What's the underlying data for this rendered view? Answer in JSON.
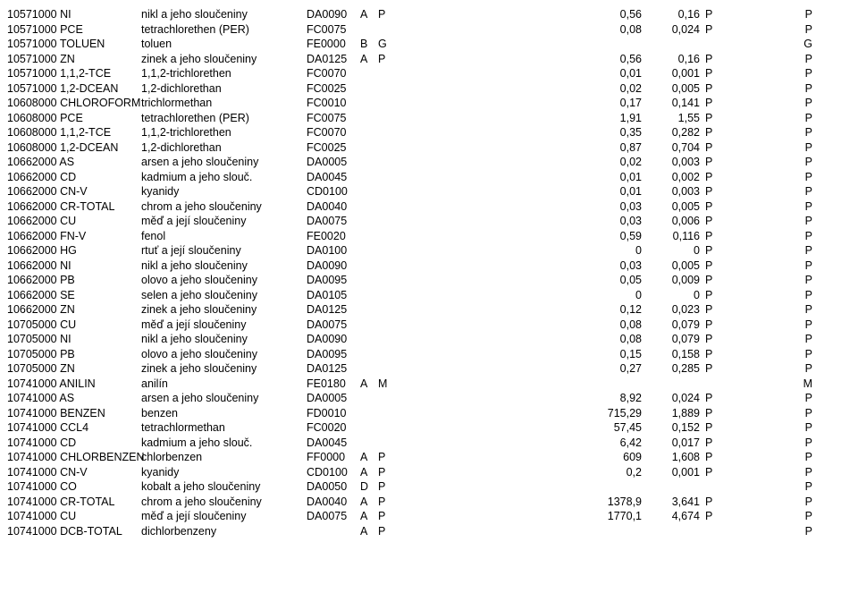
{
  "rows": [
    {
      "id": "10571000",
      "code": "NI",
      "desc": "nikl a jeho sloučeniny",
      "fc": "DA0090",
      "f1": "A",
      "f2": "P",
      "v1": "0,56",
      "v2": "0,16",
      "f3": "P",
      "f4": "P"
    },
    {
      "id": "10571000",
      "code": "PCE",
      "desc": "tetrachlorethen (PER)",
      "fc": "FC0075",
      "f1": "",
      "f2": "",
      "v1": "0,08",
      "v2": "0,024",
      "f3": "P",
      "f4": "P"
    },
    {
      "id": "10571000",
      "code": "TOLUEN",
      "desc": "toluen",
      "fc": "FE0000",
      "f1": "B",
      "f2": "G",
      "v1": "",
      "v2": "",
      "f3": "",
      "f4": "G"
    },
    {
      "id": "10571000",
      "code": "ZN",
      "desc": "zinek a jeho sloučeniny",
      "fc": "DA0125",
      "f1": "A",
      "f2": "P",
      "v1": "0,56",
      "v2": "0,16",
      "f3": "P",
      "f4": "P"
    },
    {
      "id": "10571000",
      "code": "1,1,2-TCE",
      "desc": "1,1,2-trichlorethen",
      "fc": "FC0070",
      "f1": "",
      "f2": "",
      "v1": "0,01",
      "v2": "0,001",
      "f3": "P",
      "f4": "P"
    },
    {
      "id": "10571000",
      "code": "1,2-DCEAN",
      "desc": "1,2-dichlorethan",
      "fc": "FC0025",
      "f1": "",
      "f2": "",
      "v1": "0,02",
      "v2": "0,005",
      "f3": "P",
      "f4": "P"
    },
    {
      "id": "10608000",
      "code": "CHLOROFORM",
      "desc": "trichlormethan",
      "fc": "FC0010",
      "f1": "",
      "f2": "",
      "v1": "0,17",
      "v2": "0,141",
      "f3": "P",
      "f4": "P"
    },
    {
      "id": "10608000",
      "code": "PCE",
      "desc": "tetrachlorethen (PER)",
      "fc": "FC0075",
      "f1": "",
      "f2": "",
      "v1": "1,91",
      "v2": "1,55",
      "f3": "P",
      "f4": "P"
    },
    {
      "id": "10608000",
      "code": "1,1,2-TCE",
      "desc": "1,1,2-trichlorethen",
      "fc": "FC0070",
      "f1": "",
      "f2": "",
      "v1": "0,35",
      "v2": "0,282",
      "f3": "P",
      "f4": "P"
    },
    {
      "id": "10608000",
      "code": "1,2-DCEAN",
      "desc": "1,2-dichlorethan",
      "fc": "FC0025",
      "f1": "",
      "f2": "",
      "v1": "0,87",
      "v2": "0,704",
      "f3": "P",
      "f4": "P"
    },
    {
      "id": "10662000",
      "code": "AS",
      "desc": "arsen a jeho sloučeniny",
      "fc": "DA0005",
      "f1": "",
      "f2": "",
      "v1": "0,02",
      "v2": "0,003",
      "f3": "P",
      "f4": "P"
    },
    {
      "id": "10662000",
      "code": "CD",
      "desc": "kadmium a jeho slouč.",
      "fc": "DA0045",
      "f1": "",
      "f2": "",
      "v1": "0,01",
      "v2": "0,002",
      "f3": "P",
      "f4": "P"
    },
    {
      "id": "10662000",
      "code": "CN-V",
      "desc": "kyanidy",
      "fc": "CD0100",
      "f1": "",
      "f2": "",
      "v1": "0,01",
      "v2": "0,003",
      "f3": "P",
      "f4": "P"
    },
    {
      "id": "10662000",
      "code": "CR-TOTAL",
      "desc": "chrom a jeho sloučeniny",
      "fc": "DA0040",
      "f1": "",
      "f2": "",
      "v1": "0,03",
      "v2": "0,005",
      "f3": "P",
      "f4": "P"
    },
    {
      "id": "10662000",
      "code": "CU",
      "desc": "měď a její sloučeniny",
      "fc": "DA0075",
      "f1": "",
      "f2": "",
      "v1": "0,03",
      "v2": "0,006",
      "f3": "P",
      "f4": "P"
    },
    {
      "id": "10662000",
      "code": "FN-V",
      "desc": "fenol",
      "fc": "FE0020",
      "f1": "",
      "f2": "",
      "v1": "0,59",
      "v2": "0,116",
      "f3": "P",
      "f4": "P"
    },
    {
      "id": "10662000",
      "code": "HG",
      "desc": "rtuť a její sloučeniny",
      "fc": "DA0100",
      "f1": "",
      "f2": "",
      "v1": "0",
      "v2": "0",
      "f3": "P",
      "f4": "P"
    },
    {
      "id": "10662000",
      "code": "NI",
      "desc": "nikl a jeho sloučeniny",
      "fc": "DA0090",
      "f1": "",
      "f2": "",
      "v1": "0,03",
      "v2": "0,005",
      "f3": "P",
      "f4": "P"
    },
    {
      "id": "10662000",
      "code": "PB",
      "desc": "olovo a jeho sloučeniny",
      "fc": "DA0095",
      "f1": "",
      "f2": "",
      "v1": "0,05",
      "v2": "0,009",
      "f3": "P",
      "f4": "P"
    },
    {
      "id": "10662000",
      "code": "SE",
      "desc": "selen a jeho sloučeniny",
      "fc": "DA0105",
      "f1": "",
      "f2": "",
      "v1": "0",
      "v2": "0",
      "f3": "P",
      "f4": "P"
    },
    {
      "id": "10662000",
      "code": "ZN",
      "desc": "zinek a jeho sloučeniny",
      "fc": "DA0125",
      "f1": "",
      "f2": "",
      "v1": "0,12",
      "v2": "0,023",
      "f3": "P",
      "f4": "P"
    },
    {
      "id": "10705000",
      "code": "CU",
      "desc": "měď a její sloučeniny",
      "fc": "DA0075",
      "f1": "",
      "f2": "",
      "v1": "0,08",
      "v2": "0,079",
      "f3": "P",
      "f4": "P"
    },
    {
      "id": "10705000",
      "code": "NI",
      "desc": "nikl a jeho sloučeniny",
      "fc": "DA0090",
      "f1": "",
      "f2": "",
      "v1": "0,08",
      "v2": "0,079",
      "f3": "P",
      "f4": "P"
    },
    {
      "id": "10705000",
      "code": "PB",
      "desc": "olovo a jeho sloučeniny",
      "fc": "DA0095",
      "f1": "",
      "f2": "",
      "v1": "0,15",
      "v2": "0,158",
      "f3": "P",
      "f4": "P"
    },
    {
      "id": "10705000",
      "code": "ZN",
      "desc": "zinek a jeho sloučeniny",
      "fc": "DA0125",
      "f1": "",
      "f2": "",
      "v1": "0,27",
      "v2": "0,285",
      "f3": "P",
      "f4": "P"
    },
    {
      "id": "10741000",
      "code": "ANILIN",
      "desc": "anilín",
      "fc": "FE0180",
      "f1": "A",
      "f2": "M",
      "v1": "",
      "v2": "",
      "f3": "",
      "f4": "M"
    },
    {
      "id": "10741000",
      "code": "AS",
      "desc": "arsen a jeho sloučeniny",
      "fc": "DA0005",
      "f1": "",
      "f2": "",
      "v1": "8,92",
      "v2": "0,024",
      "f3": "P",
      "f4": "P"
    },
    {
      "id": "10741000",
      "code": "BENZEN",
      "desc": "benzen",
      "fc": "FD0010",
      "f1": "",
      "f2": "",
      "v1": "715,29",
      "v2": "1,889",
      "f3": "P",
      "f4": "P"
    },
    {
      "id": "10741000",
      "code": "CCL4",
      "desc": "tetrachlormethan",
      "fc": "FC0020",
      "f1": "",
      "f2": "",
      "v1": "57,45",
      "v2": "0,152",
      "f3": "P",
      "f4": "P"
    },
    {
      "id": "10741000",
      "code": "CD",
      "desc": "kadmium a jeho slouč.",
      "fc": "DA0045",
      "f1": "",
      "f2": "",
      "v1": "6,42",
      "v2": "0,017",
      "f3": "P",
      "f4": "P"
    },
    {
      "id": "10741000",
      "code": "CHLORBENZEN",
      "desc": "chlorbenzen",
      "fc": "FF0000",
      "f1": "A",
      "f2": "P",
      "v1": "609",
      "v2": "1,608",
      "f3": "P",
      "f4": "P"
    },
    {
      "id": "10741000",
      "code": "CN-V",
      "desc": "kyanidy",
      "fc": "CD0100",
      "f1": "A",
      "f2": "P",
      "v1": "0,2",
      "v2": "0,001",
      "f3": "P",
      "f4": "P"
    },
    {
      "id": "10741000",
      "code": "CO",
      "desc": "kobalt a jeho sloučeniny",
      "fc": "DA0050",
      "f1": "D",
      "f2": "P",
      "v1": "",
      "v2": "",
      "f3": "",
      "f4": "P"
    },
    {
      "id": "10741000",
      "code": "CR-TOTAL",
      "desc": "chrom a jeho sloučeniny",
      "fc": "DA0040",
      "f1": "A",
      "f2": "P",
      "v1": "1378,9",
      "v2": "3,641",
      "f3": "P",
      "f4": "P"
    },
    {
      "id": "10741000",
      "code": "CU",
      "desc": "měď a její sloučeniny",
      "fc": "DA0075",
      "f1": "A",
      "f2": "P",
      "v1": "1770,1",
      "v2": "4,674",
      "f3": "P",
      "f4": "P"
    },
    {
      "id": "10741000",
      "code": "DCB-TOTAL",
      "desc": "dichlorbenzeny",
      "fc": "",
      "f1": "A",
      "f2": "P",
      "v1": "",
      "v2": "",
      "f3": "",
      "f4": "P"
    }
  ]
}
